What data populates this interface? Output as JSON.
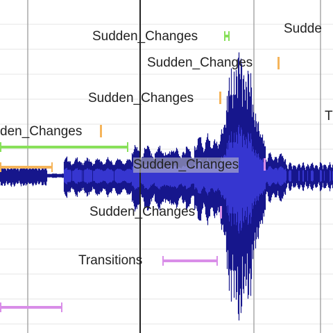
{
  "labels": {
    "l1": "Sudden_Changes",
    "l2": "Sudde",
    "l3": "Sudden_Changes",
    "l4": "Sudden_Changes",
    "l5": "T",
    "l6": "den_Changes",
    "l7": "Sudden_Changes",
    "l8": "Sudden_Changes",
    "l9": "Transitions"
  },
  "colors": {
    "waveform": "#16168c",
    "waveform_inner": "#3a3ad8",
    "cursor": "#222222",
    "grid_line": "#a8a8a8",
    "row_line": "#e6e6e6",
    "marker_green": "#88e05a",
    "marker_orange": "#f5b45a",
    "marker_magenta": "#d98ee8"
  }
}
